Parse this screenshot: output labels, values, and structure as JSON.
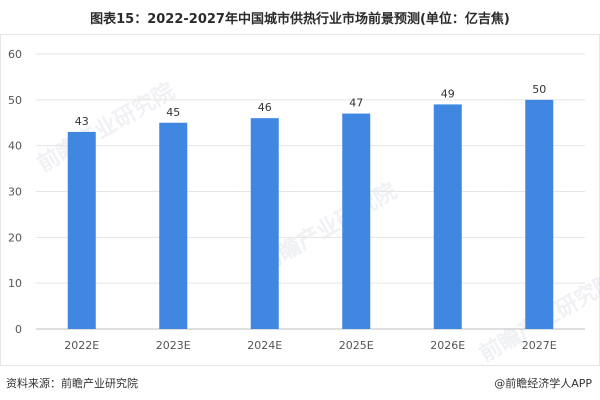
{
  "title": "图表15：2022-2027年中国城市供热行业市场前景预测(单位：亿吉焦)",
  "footer": {
    "source": "资料来源：前瞻产业研究院",
    "brand": "@前瞻经济学人APP"
  },
  "watermark": "前瞻产业研究院",
  "colors": {
    "bar": "#3f87e0",
    "grid": "#e5e5e5",
    "axis_text": "#555555"
  },
  "chart_data": {
    "type": "bar",
    "title": "图表15：2022-2027年中国城市供热行业市场前景预测(单位：亿吉焦)",
    "categories": [
      "2022E",
      "2023E",
      "2024E",
      "2025E",
      "2026E",
      "2027E"
    ],
    "values": [
      43,
      45,
      46,
      47,
      49,
      50
    ],
    "xlabel": "",
    "ylabel": "",
    "ylim": [
      0,
      60
    ],
    "yticks": [
      0,
      10,
      20,
      30,
      40,
      50,
      60
    ],
    "grid": true,
    "legend": "none"
  }
}
